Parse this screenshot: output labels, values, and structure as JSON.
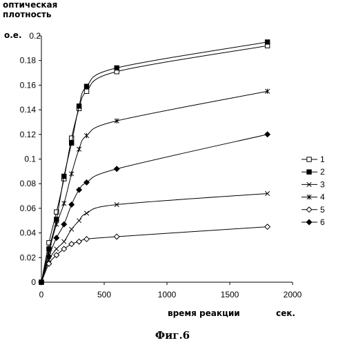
{
  "chart_data": {
    "type": "line",
    "ylabel_lines": [
      "оптическая",
      "плотность"
    ],
    "ylabel_unit": "о.е.",
    "xlabel": "время реакции",
    "xunit": "сек.",
    "caption": "Фиг.6",
    "xlim": [
      0,
      2000
    ],
    "ylim": [
      0,
      0.2
    ],
    "x_ticks": [
      0,
      500,
      1000,
      1500,
      2000
    ],
    "y_ticks": [
      0,
      0.02,
      0.04,
      0.06,
      0.08,
      0.1,
      0.12,
      0.14,
      0.16,
      0.18
    ],
    "y_tick_labels": [
      "0",
      "0.02",
      "0.04",
      "0.06",
      "0.08",
      "0.1",
      "0.12",
      "0.14",
      "0.16",
      "0.18"
    ],
    "x_tick_labels": [
      "0",
      "500",
      "1000",
      "1500",
      "2000"
    ],
    "legend_position": "right",
    "series": [
      {
        "name": "1",
        "marker": "open-square",
        "x": [
          0,
          60,
          120,
          180,
          240,
          300,
          360,
          600,
          1800
        ],
        "y": [
          0,
          0.032,
          0.057,
          0.084,
          0.117,
          0.141,
          0.155,
          0.171,
          0.192
        ]
      },
      {
        "name": "2",
        "marker": "filled-square",
        "x": [
          0,
          60,
          120,
          180,
          240,
          300,
          360,
          600,
          1800
        ],
        "y": [
          0,
          0.027,
          0.051,
          0.086,
          0.113,
          0.143,
          0.159,
          0.174,
          0.195
        ]
      },
      {
        "name": "3",
        "marker": "x",
        "x": [
          0,
          60,
          120,
          180,
          240,
          300,
          360,
          600,
          1800
        ],
        "y": [
          0,
          0.018,
          0.027,
          0.033,
          0.043,
          0.05,
          0.056,
          0.063,
          0.072
        ]
      },
      {
        "name": "4",
        "marker": "asterisk",
        "x": [
          0,
          60,
          120,
          180,
          240,
          300,
          360,
          600,
          1800
        ],
        "y": [
          0,
          0.025,
          0.047,
          0.064,
          0.088,
          0.108,
          0.119,
          0.131,
          0.155
        ]
      },
      {
        "name": "5",
        "marker": "open-diamond",
        "x": [
          0,
          60,
          120,
          180,
          240,
          300,
          360,
          600,
          1800
        ],
        "y": [
          0,
          0.015,
          0.022,
          0.027,
          0.031,
          0.033,
          0.035,
          0.037,
          0.045
        ]
      },
      {
        "name": "6",
        "marker": "filled-diamond",
        "x": [
          0,
          60,
          120,
          180,
          240,
          300,
          360,
          600,
          1800
        ],
        "y": [
          0,
          0.021,
          0.036,
          0.047,
          0.063,
          0.075,
          0.081,
          0.092,
          0.12
        ]
      }
    ]
  }
}
